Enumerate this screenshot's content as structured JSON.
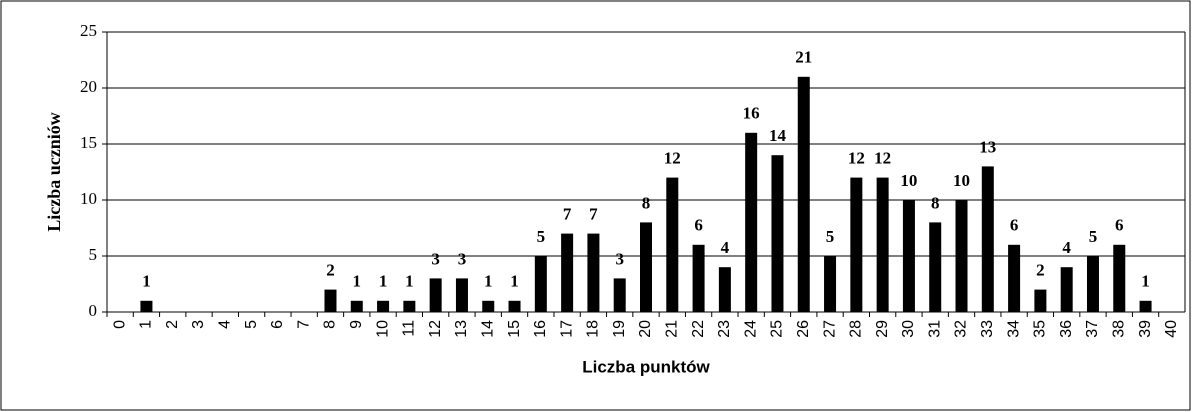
{
  "chart_data": {
    "type": "bar",
    "x_label": "Liczba punktów",
    "y_label": "Liczba uczniów",
    "categories": [
      "0",
      "1",
      "2",
      "3",
      "4",
      "5",
      "6",
      "7",
      "8",
      "9",
      "10",
      "11",
      "12",
      "13",
      "14",
      "15",
      "16",
      "17",
      "18",
      "19",
      "20",
      "21",
      "22",
      "23",
      "24",
      "25",
      "26",
      "27",
      "28",
      "29",
      "30",
      "31",
      "32",
      "33",
      "34",
      "35",
      "36",
      "37",
      "38",
      "39",
      "40"
    ],
    "values": [
      0,
      1,
      0,
      0,
      0,
      0,
      0,
      0,
      2,
      1,
      1,
      1,
      3,
      3,
      1,
      1,
      5,
      7,
      7,
      3,
      8,
      12,
      6,
      4,
      16,
      14,
      21,
      5,
      12,
      12,
      10,
      8,
      10,
      13,
      6,
      2,
      4,
      5,
      6,
      1,
      0
    ],
    "color": "#000000",
    "ylim": [
      0,
      25
    ],
    "yticks": [
      0,
      5,
      10,
      15,
      20,
      25
    ],
    "grid": true
  }
}
